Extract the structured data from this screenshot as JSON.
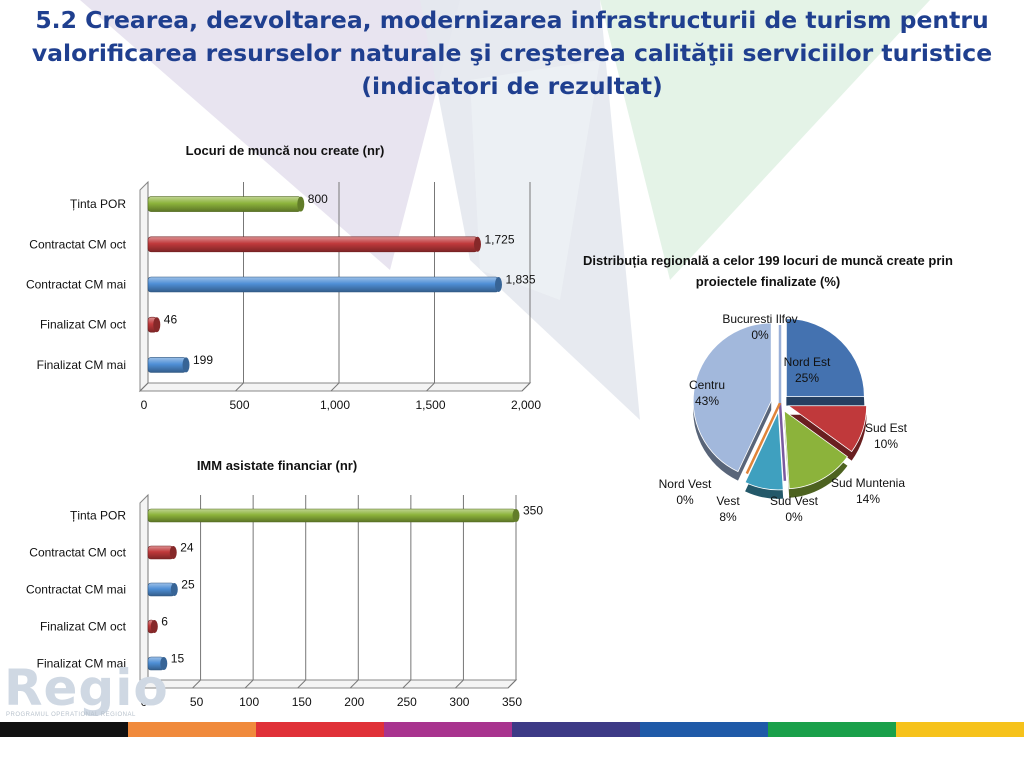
{
  "title_lines": [
    "5.2 Crearea, dezvoltarea, modernizarea infrastructurii de turism pentru",
    "valorificarea resurselor naturale şi creşterea calităţii serviciilor turistice",
    "(indicatori de rezultat)"
  ],
  "logo": {
    "text": "Regio",
    "subtitle": "PROGRAMUL OPERATIONAL REGIONAL"
  },
  "colors": {
    "title": "#1f3f8f",
    "green": "#8cb33b",
    "red": "#c0393b",
    "blue": "#4f8fd6",
    "stripe": [
      "#111111",
      "#f08a3c",
      "#e03138",
      "#a8338e",
      "#3d3a86",
      "#1f5aa8",
      "#1aa04a",
      "#f6c21b"
    ]
  },
  "chart_data": [
    {
      "type": "bar",
      "title": "Locuri de  muncă nou create (nr)",
      "categories": [
        "Ținta POR",
        "Contractat CM oct",
        "Contractat CM mai",
        "Finalizat CM oct",
        "Finalizat CM mai"
      ],
      "values": [
        800,
        1725,
        1835,
        46,
        199
      ],
      "value_labels": [
        "800",
        "1,725",
        "1,835",
        "46",
        "199"
      ],
      "bar_colors": [
        "#8cb33b",
        "#c0393b",
        "#4f8fd6",
        "#c0393b",
        "#4f8fd6"
      ],
      "xlim": [
        0,
        2000
      ],
      "xticks": [
        0,
        500,
        1000,
        1500,
        2000
      ],
      "xtick_labels": [
        "0",
        "500",
        "1,000",
        "1,500",
        "2,000"
      ],
      "grid": true
    },
    {
      "type": "bar",
      "title": "IMM asistate financiar (nr)",
      "categories": [
        "Ținta POR",
        "Contractat CM oct",
        "Contractat CM mai",
        "Finalizat CM oct",
        "Finalizat CM mai"
      ],
      "values": [
        350,
        24,
        25,
        6,
        15
      ],
      "value_labels": [
        "350",
        "24",
        "25",
        "6",
        "15"
      ],
      "bar_colors": [
        "#8cb33b",
        "#c0393b",
        "#4f8fd6",
        "#c0393b",
        "#4f8fd6"
      ],
      "xlim": [
        0,
        350
      ],
      "xticks": [
        0,
        50,
        100,
        150,
        200,
        250,
        300,
        350
      ],
      "xtick_labels": [
        "0",
        "50",
        "100",
        "150",
        "200",
        "250",
        "300",
        "350"
      ],
      "grid": true
    },
    {
      "type": "pie",
      "title_lines": [
        "Distribuția regională a celor 199  locuri de muncă create prin",
        "proiectele finalizate (%)"
      ],
      "slices": [
        {
          "name": "Nord Est",
          "value": 25,
          "label": "25%",
          "color": "#4472b0"
        },
        {
          "name": "Sud Est",
          "value": 10,
          "label": "10%",
          "color": "#c0393b"
        },
        {
          "name": "Sud Muntenia",
          "value": 14,
          "label": "14%",
          "color": "#8cb33b"
        },
        {
          "name": "Sud Vest",
          "value": 0,
          "label": "0%",
          "color": "#7a5aa0"
        },
        {
          "name": "Vest",
          "value": 8,
          "label": "8%",
          "color": "#3fa0bf"
        },
        {
          "name": "Nord Vest",
          "value": 0,
          "label": "0%",
          "color": "#e0843a"
        },
        {
          "name": "Centru",
          "value": 43,
          "label": "43%",
          "color": "#a2b8dc"
        },
        {
          "name": "Bucuresti Ilfov",
          "value": 0,
          "label": "0%",
          "color": "#9ab0d8"
        }
      ]
    }
  ]
}
